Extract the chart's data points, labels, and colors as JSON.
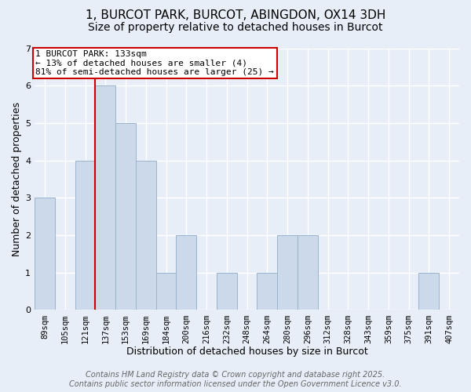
{
  "title_line1": "1, BURCOT PARK, BURCOT, ABINGDON, OX14 3DH",
  "title_line2": "Size of property relative to detached houses in Burcot",
  "xlabel": "Distribution of detached houses by size in Burcot",
  "ylabel": "Number of detached properties",
  "bins": [
    "89sqm",
    "105sqm",
    "121sqm",
    "137sqm",
    "153sqm",
    "169sqm",
    "184sqm",
    "200sqm",
    "216sqm",
    "232sqm",
    "248sqm",
    "264sqm",
    "280sqm",
    "296sqm",
    "312sqm",
    "328sqm",
    "343sqm",
    "359sqm",
    "375sqm",
    "391sqm",
    "407sqm"
  ],
  "values": [
    3,
    0,
    4,
    6,
    5,
    4,
    1,
    2,
    0,
    1,
    0,
    1,
    2,
    2,
    0,
    0,
    0,
    0,
    0,
    1,
    0
  ],
  "bar_color": "#ccd9ea",
  "bar_edge_color": "#9ab3cc",
  "red_line_index": 3,
  "annotation_line1": "1 BURCOT PARK: 133sqm",
  "annotation_line2": "← 13% of detached houses are smaller (4)",
  "annotation_line3": "81% of semi-detached houses are larger (25) →",
  "annotation_box_color": "#ffffff",
  "annotation_box_edge": "#cc0000",
  "red_line_color": "#cc0000",
  "ylim": [
    0,
    7
  ],
  "yticks": [
    0,
    1,
    2,
    3,
    4,
    5,
    6,
    7
  ],
  "footer_line1": "Contains HM Land Registry data © Crown copyright and database right 2025.",
  "footer_line2": "Contains public sector information licensed under the Open Government Licence v3.0.",
  "background_color": "#e8eef8",
  "grid_color": "#ffffff",
  "title_fontsize": 11,
  "subtitle_fontsize": 10,
  "axis_label_fontsize": 9,
  "tick_fontsize": 7.5,
  "annotation_fontsize": 8,
  "footer_fontsize": 7
}
